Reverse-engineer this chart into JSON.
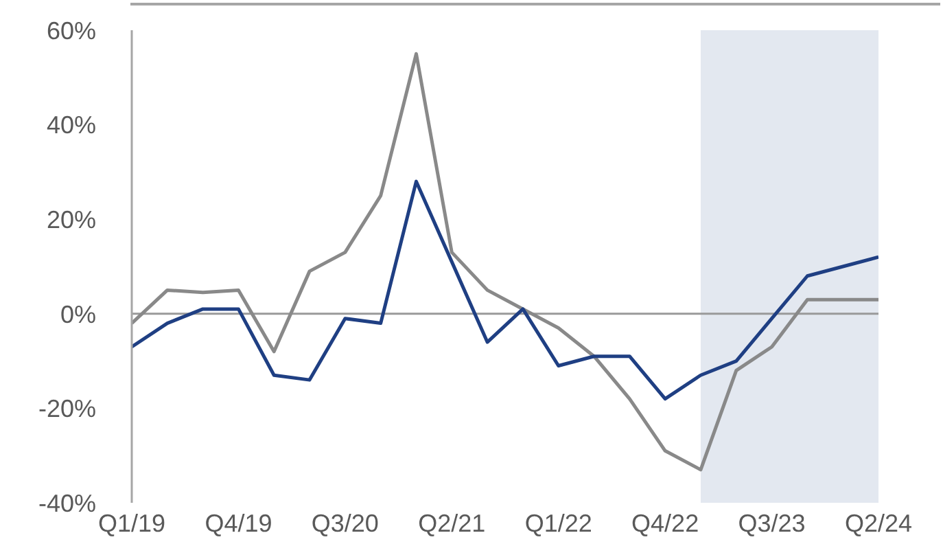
{
  "chart_data": {
    "type": "line",
    "x": [
      "2019-01",
      "2019-04",
      "2019-07",
      "2019-10",
      "2020-01",
      "2020-04",
      "2020-07",
      "2020-10",
      "2021-01",
      "2021-04",
      "2021-07",
      "2021-10",
      "2022-01",
      "2022-04",
      "2022-07",
      "2022-10",
      "2023-01",
      "2023-04",
      "2023-07",
      "2023-10",
      "2024-01",
      "2024-04"
    ],
    "series": [
      {
        "color": "#898989",
        "values": [
          -2,
          5,
          4.5,
          5,
          -8,
          9,
          13,
          25,
          55,
          13,
          5,
          1,
          -3,
          -9,
          -18,
          -29,
          -33,
          -12,
          -7,
          3,
          3,
          3
        ]
      },
      {
        "color": "#1f3f83",
        "values": [
          -7,
          -2,
          1,
          1,
          -13,
          -14,
          -1,
          -2,
          28,
          11,
          -6,
          1,
          -11,
          -9,
          -9,
          -18,
          -13,
          -10,
          -1,
          8,
          10,
          12
        ]
      }
    ],
    "xlim": [
      "2019-01",
      "2024-04"
    ],
    "xticks": [
      {
        "value": "2019-01",
        "label": "Q1/19"
      },
      {
        "value": "2019-10",
        "label": "Q4/19"
      },
      {
        "value": "2020-07",
        "label": "Q3/20"
      },
      {
        "value": "2021-04",
        "label": "Q2/21"
      },
      {
        "value": "2022-01",
        "label": "Q1/22"
      },
      {
        "value": "2022-10",
        "label": "Q4/22"
      },
      {
        "value": "2023-07",
        "label": "Q3/23"
      },
      {
        "value": "2024-04",
        "label": "Q2/24"
      }
    ],
    "ylim": [
      -40,
      60
    ],
    "yticks": [
      {
        "value": -40,
        "label": "-40%"
      },
      {
        "value": -20,
        "label": "-20%"
      },
      {
        "value": 0,
        "label": "0%"
      },
      {
        "value": 20,
        "label": "20%"
      },
      {
        "value": 40,
        "label": "40%"
      },
      {
        "value": 60,
        "label": "60%"
      }
    ],
    "ref_lines": [
      {
        "axis": "y",
        "value": 0,
        "color": "#9a9a9a"
      }
    ],
    "bands": [
      {
        "axis": "x",
        "from": "2023-01",
        "to": "2024-04",
        "color": "#e3e8f0"
      }
    ],
    "marker": "none",
    "line_style": "solid"
  }
}
